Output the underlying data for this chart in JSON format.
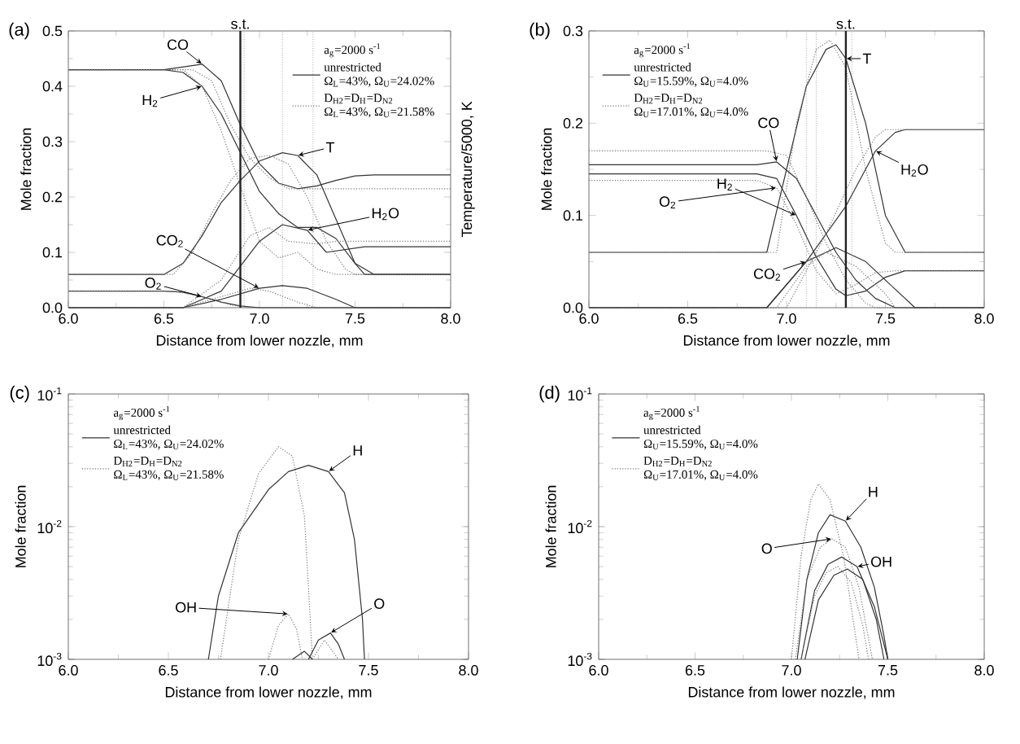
{
  "chart_data": [
    {
      "type": "line",
      "xlabel": "Distance from lower nozzle, mm",
      "ylabel": "Mole fraction",
      "y2label": "Temperature/5000, K",
      "legend": "top right",
      "legend_title": "a$_{g}$=2000 s$^{-1}$",
      "xlim": [
        6,
        8
      ],
      "ylim": [
        0,
        0.5
      ],
      "xticks": [
        {
          "value": 6,
          "label": "6.0"
        },
        {
          "value": 6.5,
          "label": "6.5"
        },
        {
          "value": 7,
          "label": "7.0"
        },
        {
          "value": 7.5,
          "label": "7.5"
        },
        {
          "value": 8,
          "label": "8.0"
        }
      ],
      "yticks": [
        {
          "value": 0,
          "label": "0.0"
        },
        {
          "value": 0.1,
          "label": "0.1"
        },
        {
          "value": 0.2,
          "label": "0.2"
        },
        {
          "value": 0.3,
          "label": "0.3"
        },
        {
          "value": 0.4,
          "label": "0.4"
        },
        {
          "value": 0.5,
          "label": "0.5"
        }
      ],
      "ref_lines": [
        {
          "axis": "x",
          "value": 6.9,
          "label": "s.t.",
          "line_style": "solid",
          "color": "#222222"
        },
        {
          "axis": "x",
          "value": 6.92,
          "line_style": "dotted",
          "color": "#777777"
        },
        {
          "axis": "x",
          "value": 7.12,
          "line_style": "dotted",
          "color": "#777777"
        },
        {
          "axis": "x",
          "value": 7.28,
          "line_style": "dotted",
          "color": "#777777"
        }
      ],
      "annotations": [
        "(a)",
        "Ω$_{L}$=43%, Ω$_{U}$=24.02%",
        "Ω$_{L}$=43%, Ω$_{U}$=21.58%",
        {
          "text": "CO",
          "x": 6.7,
          "y": 0.44
        },
        {
          "text": "H$_{2}$",
          "x": 6.7,
          "y": 0.4
        },
        {
          "text": "T",
          "x": 7.2,
          "y": 0.275
        },
        {
          "text": "H$_{2}$O",
          "x": 7.25,
          "y": 0.14
        },
        {
          "text": "CO$_{2}$",
          "x": 7.0,
          "y": 0.035
        },
        {
          "text": "O$_{2}$",
          "x": 6.7,
          "y": 0.02
        }
      ],
      "series": [
        {
          "name": "unrestricted",
          "color": "#333333",
          "line_style": "solid",
          "x": [
            6.0,
            6.5,
            6.6,
            6.7,
            6.8,
            6.9,
            7.0,
            7.1,
            7.2,
            7.3,
            7.4,
            7.5,
            7.6,
            8.0
          ],
          "values": [
            0.43,
            0.43,
            0.435,
            0.44,
            0.41,
            0.33,
            0.26,
            0.225,
            0.215,
            0.22,
            0.23,
            0.238,
            0.24,
            0.24
          ]
        },
        {
          "name": "D$_{H2}$=D$_{H}$=D$_{N2}$",
          "color": "#777777",
          "line_style": "dotted",
          "x": [
            6.0,
            6.5,
            6.65,
            6.75,
            6.85,
            6.95,
            7.05,
            7.15,
            7.3,
            8.0
          ],
          "values": [
            0.43,
            0.43,
            0.43,
            0.41,
            0.33,
            0.27,
            0.235,
            0.215,
            0.215,
            0.215
          ]
        },
        {
          "color": "#333333",
          "line_style": "solid",
          "x": [
            6.0,
            6.5,
            6.6,
            6.7,
            6.8,
            6.9,
            7.0,
            7.1,
            7.2,
            7.3,
            7.4,
            7.5,
            7.6,
            8.0
          ],
          "values": [
            0.43,
            0.43,
            0.425,
            0.4,
            0.35,
            0.28,
            0.21,
            0.17,
            0.145,
            0.145,
            0.125,
            0.08,
            0.06,
            0.06
          ]
        },
        {
          "color": "#777777",
          "line_style": "dotted",
          "x": [
            6.0,
            6.6,
            6.7,
            6.8,
            6.9,
            7.0,
            7.1,
            7.2,
            7.3,
            7.4,
            8.0
          ],
          "values": [
            0.43,
            0.43,
            0.4,
            0.32,
            0.22,
            0.12,
            0.09,
            0.1,
            0.07,
            0.06,
            0.06
          ]
        },
        {
          "color": "#333333",
          "line_style": "solid",
          "x": [
            6.0,
            6.5,
            6.6,
            6.7,
            6.8,
            6.9,
            7.0,
            7.12,
            7.2,
            7.3,
            7.4,
            7.5,
            7.55,
            8.0
          ],
          "values": [
            0.06,
            0.06,
            0.08,
            0.13,
            0.19,
            0.23,
            0.265,
            0.28,
            0.275,
            0.24,
            0.16,
            0.08,
            0.06,
            0.06
          ]
        },
        {
          "color": "#777777",
          "line_style": "dotted",
          "x": [
            6.0,
            6.55,
            6.65,
            6.75,
            6.85,
            6.95,
            7.05,
            7.15,
            7.25,
            7.35,
            7.45,
            7.5,
            8.0
          ],
          "values": [
            0.06,
            0.06,
            0.1,
            0.17,
            0.23,
            0.27,
            0.275,
            0.26,
            0.2,
            0.12,
            0.07,
            0.06,
            0.06
          ]
        },
        {
          "color": "#333333",
          "line_style": "solid",
          "x": [
            6.0,
            6.6,
            6.8,
            7.0,
            7.12,
            7.25,
            7.35,
            7.45,
            7.55,
            8.0
          ],
          "values": [
            0,
            0,
            0.03,
            0.12,
            0.15,
            0.14,
            0.1,
            0.105,
            0.11,
            0.11
          ]
        },
        {
          "color": "#777777",
          "line_style": "dotted",
          "x": [
            6.0,
            6.6,
            6.8,
            6.95,
            7.05,
            7.15,
            7.3,
            7.4,
            8.0
          ],
          "values": [
            0,
            0,
            0.05,
            0.13,
            0.145,
            0.12,
            0.115,
            0.12,
            0.12
          ]
        },
        {
          "color": "#333333",
          "line_style": "solid",
          "x": [
            6.0,
            6.6,
            6.8,
            7.0,
            7.12,
            7.25,
            7.4,
            7.5,
            8.0
          ],
          "values": [
            0,
            0,
            0.015,
            0.035,
            0.04,
            0.035,
            0.015,
            0,
            0
          ]
        },
        {
          "color": "#777777",
          "line_style": "dotted",
          "x": [
            6.0,
            6.6,
            6.8,
            6.95,
            7.05,
            7.2,
            7.3,
            8.0
          ],
          "values": [
            0,
            0,
            0.02,
            0.035,
            0.03,
            0.01,
            0,
            0
          ]
        },
        {
          "color": "#333333",
          "line_style": "solid",
          "x": [
            6.0,
            6.5,
            6.6,
            6.7,
            6.8,
            6.9,
            7.0,
            8.0
          ],
          "values": [
            0.03,
            0.03,
            0.028,
            0.02,
            0.01,
            0.003,
            0,
            0
          ]
        },
        {
          "color": "#777777",
          "line_style": "dotted",
          "x": [
            6.0,
            6.55,
            6.7,
            6.85,
            6.95,
            8.0
          ],
          "values": [
            0.03,
            0.03,
            0.02,
            0.005,
            0,
            0
          ]
        }
      ]
    },
    {
      "type": "line",
      "xlabel": "Distance from lower nozzle, mm",
      "ylabel": "Mole fraction",
      "legend": "top left",
      "legend_title": "a$_{g}$=2000 s$^{-1}$",
      "xlim": [
        6,
        8
      ],
      "ylim": [
        0,
        0.3
      ],
      "xticks": [
        {
          "value": 6,
          "label": "6.0"
        },
        {
          "value": 6.5,
          "label": "6.5"
        },
        {
          "value": 7,
          "label": "7.0"
        },
        {
          "value": 7.5,
          "label": "7.5"
        },
        {
          "value": 8,
          "label": "8.0"
        }
      ],
      "yticks": [
        {
          "value": 0,
          "label": "0.0"
        },
        {
          "value": 0.1,
          "label": "0.1"
        },
        {
          "value": 0.2,
          "label": "0.2"
        },
        {
          "value": 0.3,
          "label": "0.3"
        }
      ],
      "ref_lines": [
        {
          "axis": "x",
          "value": 7.3,
          "label": "s.t.",
          "line_style": "solid",
          "color": "#222222"
        },
        {
          "axis": "x",
          "value": 7.1,
          "line_style": "dotted",
          "color": "#777777"
        },
        {
          "axis": "x",
          "value": 7.15,
          "line_style": "dotted",
          "color": "#777777"
        },
        {
          "axis": "x",
          "value": 7.33,
          "line_style": "dotted",
          "color": "#777777"
        }
      ],
      "annotations": [
        "(b)",
        "Ω$_{U}$=15.59%, Ω$_{U}$=4.0%",
        "Ω$_{U}$=17.01%, Ω$_{U}$=4.0%",
        {
          "text": "CO",
          "x": 6.95,
          "y": 0.158
        },
        {
          "text": "H$_{2}$",
          "x": 7.05,
          "y": 0.1
        },
        {
          "text": "O$_{2}$",
          "x": 6.95,
          "y": 0.13
        },
        {
          "text": "T",
          "x": 7.3,
          "y": 0.27
        },
        {
          "text": "H$_{2}$O",
          "x": 7.45,
          "y": 0.17
        },
        {
          "text": "CO$_{2}$",
          "x": 7.1,
          "y": 0.05
        }
      ],
      "series": [
        {
          "name": "unrestricted",
          "color": "#333333",
          "line_style": "solid",
          "x": [
            6.0,
            6.85,
            6.95,
            7.05,
            7.15,
            7.25,
            7.35,
            7.45,
            7.55,
            8.0
          ],
          "values": [
            0.155,
            0.155,
            0.158,
            0.14,
            0.1,
            0.06,
            0.03,
            0.01,
            0,
            0
          ]
        },
        {
          "name": "D$_{H2}$=D$_{H}$=D$_{N2}$",
          "color": "#777777",
          "line_style": "dotted",
          "x": [
            6.0,
            6.9,
            7.0,
            7.1,
            7.2,
            7.3,
            7.4,
            7.45,
            8.0
          ],
          "values": [
            0.17,
            0.17,
            0.165,
            0.12,
            0.07,
            0.03,
            0.005,
            0,
            0
          ]
        },
        {
          "color": "#333333",
          "line_style": "solid",
          "x": [
            6.0,
            6.85,
            6.95,
            7.05,
            7.15,
            7.25,
            7.3,
            7.4,
            7.5,
            7.6,
            8.0
          ],
          "values": [
            0.145,
            0.145,
            0.14,
            0.1,
            0.055,
            0.02,
            0.013,
            0.018,
            0.033,
            0.04,
            0.04
          ]
        },
        {
          "color": "#777777",
          "line_style": "dotted",
          "x": [
            6.0,
            6.85,
            6.95,
            7.05,
            7.15,
            7.25,
            7.35,
            7.45,
            7.55,
            8.0
          ],
          "values": [
            0.138,
            0.138,
            0.13,
            0.09,
            0.04,
            0.015,
            0.025,
            0.038,
            0.04,
            0.04
          ]
        },
        {
          "color": "#333333",
          "line_style": "solid",
          "x": [
            6.0,
            6.9,
            7.0,
            7.1,
            7.2,
            7.25,
            7.3,
            7.4,
            7.5,
            7.6,
            8.0
          ],
          "values": [
            0.06,
            0.06,
            0.15,
            0.24,
            0.28,
            0.285,
            0.27,
            0.2,
            0.1,
            0.06,
            0.06
          ]
        },
        {
          "color": "#777777",
          "line_style": "dotted",
          "x": [
            6.0,
            6.95,
            7.05,
            7.15,
            7.22,
            7.3,
            7.4,
            7.5,
            7.55,
            8.0
          ],
          "values": [
            0.06,
            0.06,
            0.2,
            0.28,
            0.29,
            0.26,
            0.15,
            0.07,
            0.06,
            0.06
          ]
        },
        {
          "color": "#333333",
          "line_style": "solid",
          "x": [
            6.0,
            6.9,
            7.1,
            7.3,
            7.45,
            7.55,
            7.6,
            8.0
          ],
          "values": [
            0,
            0,
            0.05,
            0.11,
            0.17,
            0.19,
            0.193,
            0.193
          ]
        },
        {
          "color": "#777777",
          "line_style": "dotted",
          "x": [
            6.0,
            7.0,
            7.2,
            7.35,
            7.45,
            7.5,
            8.0
          ],
          "values": [
            0,
            0,
            0.08,
            0.15,
            0.185,
            0.193,
            0.193
          ]
        },
        {
          "color": "#333333",
          "line_style": "solid",
          "x": [
            6.0,
            6.9,
            7.1,
            7.25,
            7.4,
            7.55,
            7.65,
            8.0
          ],
          "values": [
            0,
            0,
            0.05,
            0.065,
            0.05,
            0.02,
            0,
            0
          ]
        },
        {
          "color": "#777777",
          "line_style": "dotted",
          "x": [
            6.0,
            6.95,
            7.1,
            7.2,
            7.35,
            7.5,
            7.55,
            8.0
          ],
          "values": [
            0,
            0,
            0.045,
            0.06,
            0.045,
            0.015,
            0,
            0
          ]
        }
      ]
    },
    {
      "type": "line",
      "xlabel": "Distance from lower nozzle, mm",
      "ylabel": "Mole fraction",
      "legend": "top left",
      "legend_title": "a$_{g}$=2000 s$^{-1}$",
      "log": "y",
      "xlim": [
        6,
        8
      ],
      "ylim": [
        0.001,
        0.1
      ],
      "xticks": [
        {
          "value": 6,
          "label": "6.0"
        },
        {
          "value": 6.5,
          "label": "6.5"
        },
        {
          "value": 7,
          "label": "7.0"
        },
        {
          "value": 7.5,
          "label": "7.5"
        },
        {
          "value": 8,
          "label": "8.0"
        }
      ],
      "yticks": [
        {
          "value": 0.001,
          "label": "10$^{-3}$"
        },
        {
          "value": 0.01,
          "label": "10$^{-2}$"
        },
        {
          "value": 0.1,
          "label": "10$^{-1}$"
        }
      ],
      "annotations": [
        "(c)",
        "Ω$_{L}$=43%, Ω$_{U}$=24.02%",
        "Ω$_{L}$=43%, Ω$_{U}$=21.58%",
        {
          "text": "H",
          "x": 7.3,
          "y": 0.026
        },
        {
          "text": "OH",
          "x": 7.1,
          "y": 0.0022
        },
        {
          "text": "O",
          "x": 7.31,
          "y": 0.00158
        }
      ],
      "series": [
        {
          "name": "unrestricted",
          "color": "#333333",
          "line_style": "solid",
          "x": [
            6.7,
            6.75,
            6.85,
            7.0,
            7.1,
            7.2,
            7.3,
            7.38,
            7.43,
            7.47,
            7.48
          ],
          "values": [
            0.001,
            0.003,
            0.009,
            0.019,
            0.026,
            0.029,
            0.026,
            0.018,
            0.008,
            0.002,
            0.001
          ]
        },
        {
          "name": "D$_{H2}$=D$_{H}$=D$_{N2}$",
          "color": "#777777",
          "line_style": "dotted",
          "x": [
            6.76,
            6.85,
            6.95,
            7.05,
            7.12,
            7.18,
            7.22
          ],
          "values": [
            0.001,
            0.008,
            0.025,
            0.04,
            0.034,
            0.012,
            0.001
          ]
        },
        {
          "color": "#777777",
          "line_style": "dotted",
          "x": [
            7.0,
            7.05,
            7.1,
            7.14,
            7.17
          ],
          "values": [
            0.001,
            0.0018,
            0.0022,
            0.0017,
            0.001
          ]
        },
        {
          "color": "#333333",
          "line_style": "solid",
          "x": [
            7.12,
            7.18,
            7.22
          ],
          "values": [
            0.001,
            0.00115,
            0.001
          ]
        },
        {
          "color": "#333333",
          "line_style": "solid",
          "x": [
            7.2,
            7.25,
            7.31,
            7.35,
            7.38
          ],
          "values": [
            0.001,
            0.0014,
            0.00158,
            0.0013,
            0.001
          ]
        },
        {
          "color": "#777777",
          "line_style": "dotted",
          "x": [
            7.22,
            7.28,
            7.35
          ],
          "values": [
            0.001,
            0.0014,
            0.001
          ]
        }
      ]
    },
    {
      "type": "line",
      "xlabel": "Distance from lower nozzle, mm",
      "ylabel": "Mole fraction",
      "legend": "top left",
      "legend_title": "a$_{g}$=2000 s$^{-1}$",
      "log": "y",
      "xlim": [
        6,
        8
      ],
      "ylim": [
        0.001,
        0.1
      ],
      "xticks": [
        {
          "value": 6,
          "label": "6.0"
        },
        {
          "value": 6.5,
          "label": "6.5"
        },
        {
          "value": 7,
          "label": "7.0"
        },
        {
          "value": 7.5,
          "label": "7.5"
        },
        {
          "value": 8,
          "label": "8.0"
        }
      ],
      "yticks": [
        {
          "value": 0.001,
          "label": "10$^{-3}$"
        },
        {
          "value": 0.01,
          "label": "10$^{-2}$"
        },
        {
          "value": 0.1,
          "label": "10$^{-1}$"
        }
      ],
      "annotations": [
        "(d)",
        "Ω$_{U}$=15.59%, Ω$_{U}$=4.0%",
        "Ω$_{U}$=17.01%, Ω$_{U}$=4.0%",
        {
          "text": "H",
          "x": 7.28,
          "y": 0.011
        },
        {
          "text": "O",
          "x": 7.21,
          "y": 0.0081
        },
        {
          "text": "OH",
          "x": 7.34,
          "y": 0.005
        }
      ],
      "series": [
        {
          "name": "unrestricted",
          "color": "#333333",
          "line_style": "solid",
          "x": [
            7.03,
            7.08,
            7.14,
            7.2,
            7.28,
            7.36,
            7.43,
            7.48,
            7.5
          ],
          "values": [
            0.001,
            0.004,
            0.009,
            0.0123,
            0.011,
            0.007,
            0.0035,
            0.0015,
            0.001
          ]
        },
        {
          "name": "D$_{H2}$=D$_{H}$=D$_{N2}$",
          "color": "#777777",
          "line_style": "dotted",
          "x": [
            7.0,
            7.05,
            7.1,
            7.14,
            7.2,
            7.27,
            7.32,
            7.35
          ],
          "values": [
            0.001,
            0.006,
            0.016,
            0.021,
            0.016,
            0.006,
            0.002,
            0.001
          ]
        },
        {
          "color": "#777777",
          "line_style": "dotted",
          "x": [
            7.02,
            7.08,
            7.15,
            7.21,
            7.28,
            7.35,
            7.42
          ],
          "values": [
            0.001,
            0.004,
            0.007,
            0.0081,
            0.007,
            0.0035,
            0.001
          ]
        },
        {
          "color": "#333333",
          "line_style": "solid",
          "x": [
            7.05,
            7.12,
            7.19,
            7.26,
            7.34,
            7.43,
            7.5
          ],
          "values": [
            0.001,
            0.0033,
            0.0052,
            0.0059,
            0.005,
            0.0025,
            0.001
          ]
        },
        {
          "color": "#777777",
          "line_style": "dotted",
          "x": [
            7.05,
            7.12,
            7.18,
            7.24,
            7.31,
            7.37,
            7.4
          ],
          "values": [
            0.001,
            0.003,
            0.0045,
            0.005,
            0.0038,
            0.0018,
            0.001
          ]
        },
        {
          "color": "#333333",
          "line_style": "solid",
          "x": [
            7.07,
            7.14,
            7.22,
            7.29,
            7.37,
            7.44,
            7.48
          ],
          "values": [
            0.001,
            0.0028,
            0.0043,
            0.0048,
            0.004,
            0.002,
            0.001
          ]
        }
      ]
    }
  ]
}
